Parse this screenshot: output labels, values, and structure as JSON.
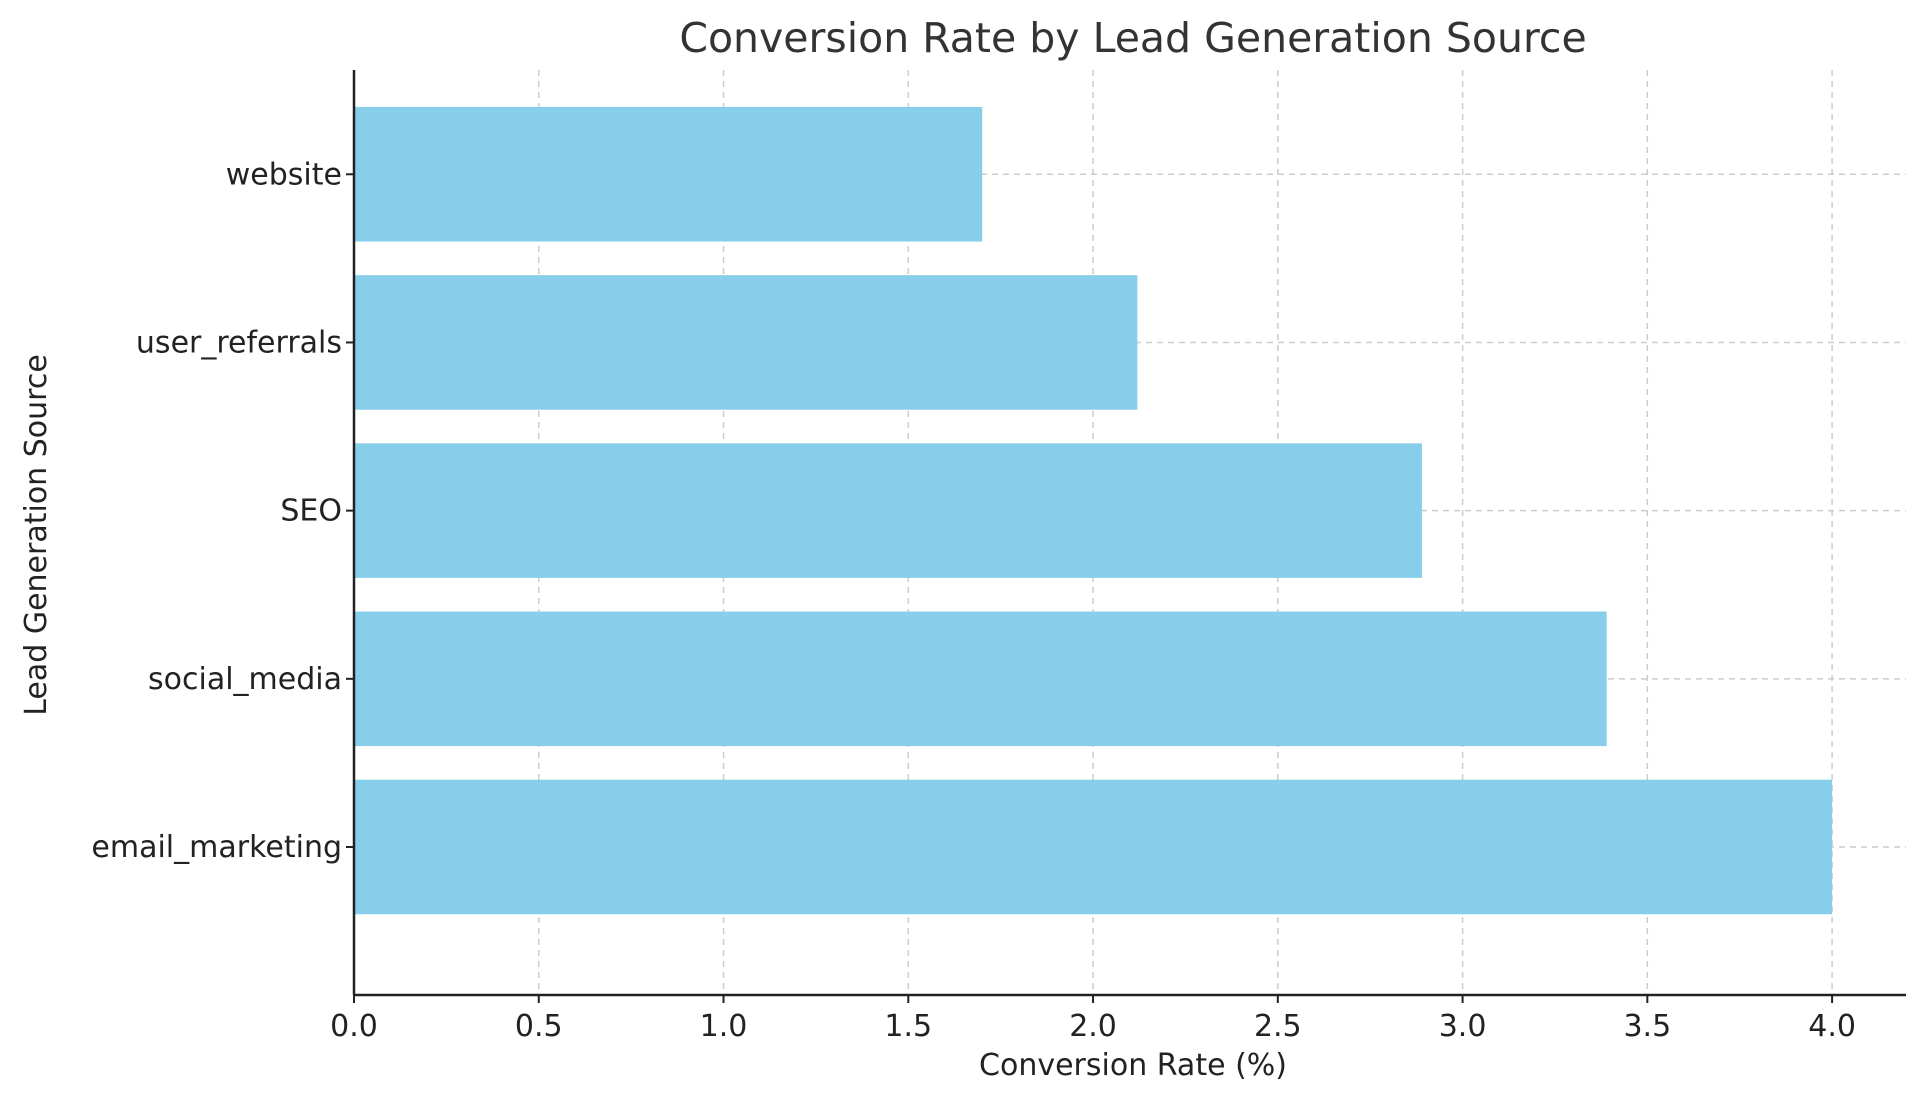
{
  "chart_data": {
    "type": "bar",
    "orientation": "horizontal",
    "title": "Conversion Rate by Lead Generation Source",
    "xlabel": "Conversion Rate (%)",
    "ylabel": "Lead Generation Source",
    "categories": [
      "website",
      "user_referrals",
      "SEO",
      "social_media",
      "email_marketing"
    ],
    "values": [
      1.7,
      2.12,
      2.89,
      3.39,
      4.0
    ],
    "xlim": [
      0,
      4.2
    ],
    "xticks": [
      "0.0",
      "0.5",
      "1.0",
      "1.5",
      "2.0",
      "2.5",
      "3.0",
      "3.5",
      "4.0"
    ],
    "grid": true,
    "bar_color": "#87CEEB"
  }
}
